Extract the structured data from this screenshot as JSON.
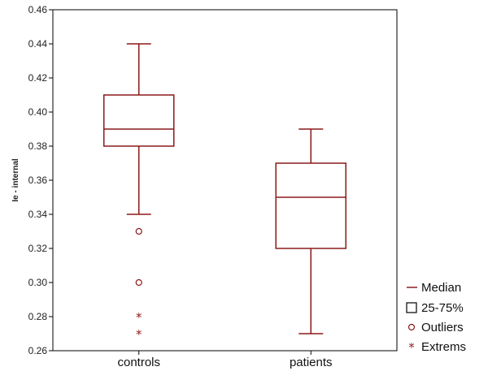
{
  "chart_data": {
    "type": "box",
    "ylabel": "Ie - internal",
    "ylim": [
      0.26,
      0.46
    ],
    "yticks": [
      "0.26",
      "0.28",
      "0.30",
      "0.32",
      "0.34",
      "0.36",
      "0.38",
      "0.40",
      "0.42",
      "0.44",
      "0.46"
    ],
    "categories": [
      "controls",
      "patients"
    ],
    "boxes": [
      {
        "category": "controls",
        "whisker_low": 0.34,
        "q1": 0.38,
        "median": 0.39,
        "q3": 0.41,
        "whisker_high": 0.44,
        "outliers": [
          0.33,
          0.3
        ],
        "extremes": [
          0.28,
          0.27
        ]
      },
      {
        "category": "patients",
        "whisker_low": 0.27,
        "q1": 0.32,
        "median": 0.35,
        "q3": 0.37,
        "whisker_high": 0.39,
        "outliers": [],
        "extremes": []
      }
    ],
    "legend": {
      "placement": "bottom-right outside",
      "items": [
        {
          "label": "Median",
          "symbol": "line"
        },
        {
          "label": "25-75%",
          "symbol": "box"
        },
        {
          "label": "Outliers",
          "symbol": "circle"
        },
        {
          "label": "Extrems",
          "symbol": "star"
        }
      ]
    },
    "colors": {
      "series": "#8b1a1a",
      "axis": "#000000"
    },
    "grid": false
  }
}
